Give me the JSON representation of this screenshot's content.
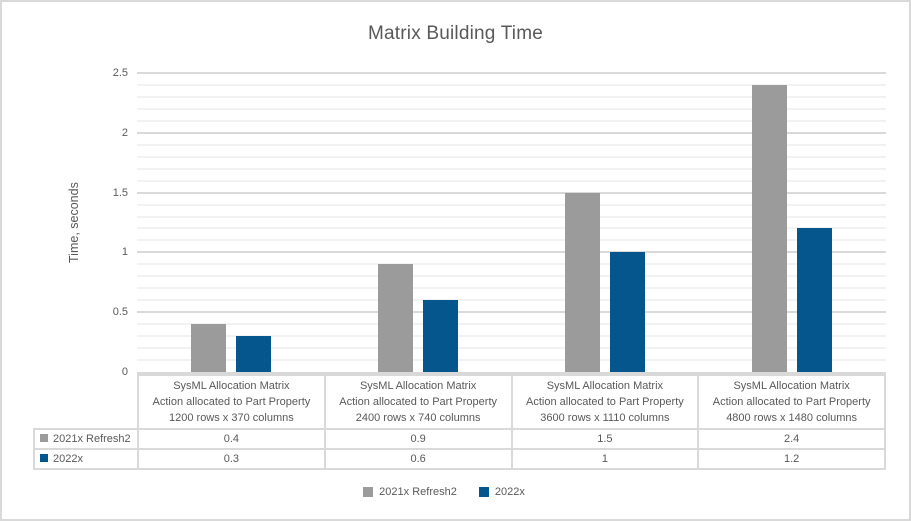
{
  "chart_data": {
    "type": "bar",
    "title": "Matrix Building Time",
    "xlabel": "",
    "ylabel": "Time, seconds",
    "ylim": [
      0,
      2.5
    ],
    "y_major_step": 0.5,
    "y_minor_step": 0.1,
    "y_tick_labels": [
      "0",
      "0.5",
      "1",
      "1.5",
      "2",
      "2.5"
    ],
    "grid": "horizontal major and minor gridlines",
    "legend_position": "bottom",
    "data_table_shown": true,
    "categories": [
      [
        "SysML Allocation Matrix",
        "Action allocated to Part Property",
        "1200 rows x 370 columns"
      ],
      [
        "SysML Allocation Matrix",
        "Action allocated to Part Property",
        "2400 rows x 740 columns"
      ],
      [
        "SysML Allocation Matrix",
        "Action allocated to Part Property",
        "3600 rows x 1110 columns"
      ],
      [
        "SysML Allocation Matrix",
        "Action allocated to Part Property",
        "4800 rows x 1480 columns"
      ]
    ],
    "series": [
      {
        "name": "2021x Refresh2",
        "color": "#9B9B9B",
        "values": [
          0.4,
          0.9,
          1.5,
          2.4
        ],
        "value_labels": [
          "0.4",
          "0.9",
          "1.5",
          "2.4"
        ]
      },
      {
        "name": "2022x",
        "color": "#05568C",
        "values": [
          0.3,
          0.6,
          1,
          1.2
        ],
        "value_labels": [
          "0.3",
          "0.6",
          "1",
          "1.2"
        ]
      }
    ]
  },
  "colors": {
    "text": "#595959",
    "grid_major": "#D9D9D9",
    "grid_minor": "#F2F2F2",
    "border": "#D9D9D9",
    "background": "#FFFFFF"
  }
}
